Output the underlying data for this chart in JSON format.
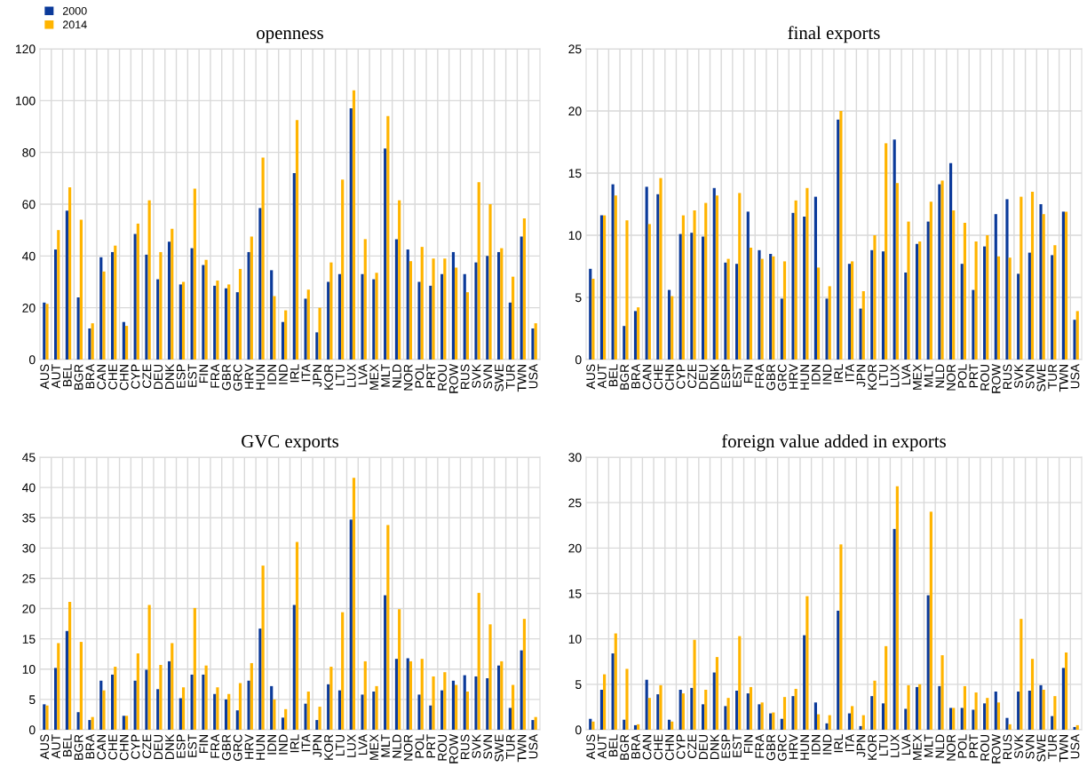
{
  "chart_data": [
    {
      "type": "bar",
      "title": "openness",
      "legend": "top left",
      "grid": true,
      "categories": [
        "AUS",
        "AUT",
        "BEL",
        "BGR",
        "BRA",
        "CAN",
        "CHE",
        "CHN",
        "CYP",
        "CZE",
        "DEU",
        "DNK",
        "ESP",
        "EST",
        "FIN",
        "FRA",
        "GBR",
        "GRC",
        "HRV",
        "HUN",
        "IDN",
        "IND",
        "IRL",
        "ITA",
        "JPN",
        "KOR",
        "LTU",
        "LUX",
        "LVA",
        "MEX",
        "MLT",
        "NLD",
        "NOR",
        "POL",
        "PRT",
        "ROU",
        "ROW",
        "RUS",
        "SVK",
        "SVN",
        "SWE",
        "TUR",
        "TWN",
        "USA"
      ],
      "ylim": [
        0,
        120
      ],
      "yticks": [
        0,
        20,
        40,
        60,
        80,
        100,
        120
      ],
      "series": [
        {
          "name": "2000",
          "color": "#0b3a9a",
          "values": [
            22,
            42.5,
            57.5,
            24,
            12,
            39.5,
            41.5,
            14.5,
            48.5,
            40.5,
            31,
            45.5,
            29,
            43,
            36.5,
            28.5,
            27.5,
            26,
            41.5,
            58.5,
            34.5,
            14.5,
            72,
            23.5,
            10.5,
            30,
            33,
            97,
            33,
            31,
            81.5,
            46.5,
            42.5,
            30,
            28.5,
            33,
            41.5,
            33,
            37.5,
            40,
            41.5,
            22,
            47.5,
            12
          ]
        },
        {
          "name": "2014",
          "color": "#ffb400",
          "values": [
            21.5,
            50,
            66.5,
            54,
            14,
            34,
            44,
            13,
            52.5,
            61.5,
            41.5,
            50.5,
            30,
            66,
            38.5,
            30.5,
            29,
            35,
            47.5,
            78,
            24.5,
            19,
            92.5,
            27,
            20,
            37.5,
            69.5,
            104,
            46.5,
            33.5,
            94,
            61.5,
            38,
            43.5,
            39,
            39,
            35.5,
            26,
            68.5,
            60,
            43,
            32,
            54.5,
            14
          ]
        }
      ]
    },
    {
      "type": "bar",
      "title": "final exports",
      "grid": true,
      "categories": [
        "AUS",
        "AUT",
        "BEL",
        "BGR",
        "BRA",
        "CAN",
        "CHE",
        "CHN",
        "CYP",
        "CZE",
        "DEU",
        "DNK",
        "ESP",
        "EST",
        "FIN",
        "FRA",
        "GBR",
        "GRC",
        "HRV",
        "HUN",
        "IDN",
        "IND",
        "IRL",
        "ITA",
        "JPN",
        "KOR",
        "LTU",
        "LUX",
        "LVA",
        "MEX",
        "MLT",
        "NLD",
        "NOR",
        "POL",
        "PRT",
        "ROU",
        "ROW",
        "RUS",
        "SVK",
        "SVN",
        "SWE",
        "TUR",
        "TWN",
        "USA"
      ],
      "ylim": [
        0,
        25
      ],
      "yticks": [
        0,
        5,
        10,
        15,
        20,
        25
      ],
      "series": [
        {
          "name": "2000",
          "color": "#0b3a9a",
          "values": [
            7.3,
            11.6,
            14.1,
            2.7,
            3.9,
            13.9,
            13.3,
            5.6,
            10.1,
            10.2,
            9.9,
            13.8,
            7.8,
            7.7,
            11.9,
            8.8,
            8.5,
            4.9,
            11.8,
            11.5,
            13.1,
            4.9,
            19.3,
            7.7,
            4.1,
            8.8,
            8.7,
            17.7,
            7.0,
            9.3,
            11.1,
            14.1,
            15.8,
            7.7,
            5.6,
            9.1,
            11.7,
            12.9,
            6.9,
            8.6,
            12.5,
            8.4,
            11.9,
            3.2
          ]
        },
        {
          "name": "2014",
          "color": "#ffb400",
          "values": [
            6.5,
            11.6,
            13.2,
            11.2,
            4.2,
            10.9,
            14.6,
            5.1,
            11.6,
            12.0,
            12.6,
            13.2,
            8.1,
            13.4,
            9.0,
            8.1,
            8.3,
            7.9,
            12.8,
            13.8,
            7.4,
            5.9,
            20.0,
            7.9,
            5.5,
            10.0,
            17.4,
            14.2,
            11.1,
            9.5,
            12.7,
            14.4,
            12.0,
            11.0,
            9.5,
            10.0,
            8.3,
            8.2,
            13.1,
            13.5,
            11.7,
            9.2,
            11.9,
            3.9
          ]
        }
      ]
    },
    {
      "type": "bar",
      "title": "GVC exports",
      "grid": true,
      "categories": [
        "AUS",
        "AUT",
        "BEL",
        "BGR",
        "BRA",
        "CAN",
        "CHE",
        "CHN",
        "CYP",
        "CZE",
        "DEU",
        "DNK",
        "ESP",
        "EST",
        "FIN",
        "FRA",
        "GBR",
        "GRC",
        "HRV",
        "HUN",
        "IDN",
        "IND",
        "IRL",
        "ITA",
        "JPN",
        "KOR",
        "LTU",
        "LUX",
        "LVA",
        "MEX",
        "MLT",
        "NLD",
        "NOR",
        "POL",
        "PRT",
        "ROU",
        "ROW",
        "RUS",
        "SVK",
        "SVN",
        "SWE",
        "TUR",
        "TWN",
        "USA"
      ],
      "ylim": [
        0,
        45
      ],
      "yticks": [
        0,
        5,
        10,
        15,
        20,
        25,
        30,
        35,
        40,
        45
      ],
      "series": [
        {
          "name": "2000",
          "color": "#0b3a9a",
          "values": [
            4.2,
            10.2,
            16.3,
            2.9,
            1.6,
            8.1,
            9.1,
            2.3,
            8.1,
            9.9,
            6.7,
            11.3,
            5.2,
            9.1,
            9.1,
            5.9,
            5.0,
            3.2,
            8.1,
            16.7,
            7.2,
            2.0,
            20.6,
            4.3,
            1.6,
            7.5,
            6.5,
            34.7,
            5.8,
            6.3,
            22.2,
            11.7,
            11.8,
            5.8,
            4.0,
            6.5,
            8.1,
            9.0,
            8.8,
            8.5,
            10.6,
            3.6,
            13.1,
            1.6
          ]
        },
        {
          "name": "2014",
          "color": "#ffb400",
          "values": [
            4.0,
            14.3,
            21.1,
            14.5,
            2.1,
            6.5,
            10.4,
            2.3,
            12.6,
            20.6,
            10.7,
            14.3,
            7.0,
            20.1,
            10.6,
            7.0,
            5.9,
            7.7,
            11.0,
            27.1,
            5.0,
            3.4,
            31.0,
            6.3,
            3.8,
            10.4,
            19.4,
            41.6,
            11.3,
            7.2,
            33.8,
            19.9,
            11.3,
            11.7,
            8.8,
            9.5,
            7.4,
            6.3,
            22.6,
            17.4,
            11.3,
            7.4,
            18.3,
            2.1
          ]
        }
      ]
    },
    {
      "type": "bar",
      "title": "foreign value added in exports",
      "grid": true,
      "categories": [
        "AUS",
        "AUT",
        "BEL",
        "BGR",
        "BRA",
        "CAN",
        "CHE",
        "CHN",
        "CYP",
        "CZE",
        "DEU",
        "DNK",
        "ESP",
        "EST",
        "FIN",
        "FRA",
        "GBR",
        "GRC",
        "HRV",
        "HUN",
        "IDN",
        "IND",
        "IRL",
        "ITA",
        "JPN",
        "KOR",
        "LTU",
        "LUX",
        "LVA",
        "MEX",
        "MLT",
        "NLD",
        "NOR",
        "POL",
        "PRT",
        "ROU",
        "ROW",
        "RUS",
        "SVK",
        "SVN",
        "SWE",
        "TUR",
        "TWN",
        "USA"
      ],
      "ylim": [
        0,
        30
      ],
      "yticks": [
        0,
        5,
        10,
        15,
        20,
        25,
        30
      ],
      "series": [
        {
          "name": "2000",
          "color": "#0b3a9a",
          "values": [
            1.2,
            4.4,
            8.4,
            1.1,
            0.5,
            5.5,
            3.9,
            1.1,
            4.4,
            4.6,
            2.8,
            6.3,
            2.6,
            4.3,
            4.0,
            2.8,
            1.8,
            1.2,
            3.7,
            10.4,
            3.0,
            0.7,
            13.1,
            1.8,
            0.4,
            3.7,
            2.9,
            22.1,
            2.3,
            4.7,
            14.8,
            4.8,
            2.4,
            2.4,
            2.2,
            2.9,
            4.2,
            1.3,
            4.2,
            4.3,
            4.9,
            1.5,
            6.8,
            0.3
          ]
        },
        {
          "name": "2014",
          "color": "#ffb400",
          "values": [
            0.9,
            6.1,
            10.6,
            6.7,
            0.6,
            3.5,
            4.9,
            0.9,
            4.0,
            9.9,
            4.4,
            8.0,
            3.5,
            10.3,
            4.7,
            3.0,
            1.9,
            3.6,
            4.5,
            14.7,
            1.7,
            1.6,
            20.4,
            2.6,
            1.6,
            5.4,
            9.2,
            26.8,
            4.9,
            5.0,
            24.0,
            8.2,
            2.4,
            4.8,
            4.1,
            3.5,
            3.0,
            0.6,
            12.2,
            7.8,
            4.4,
            3.7,
            8.5,
            0.5
          ]
        }
      ]
    }
  ]
}
